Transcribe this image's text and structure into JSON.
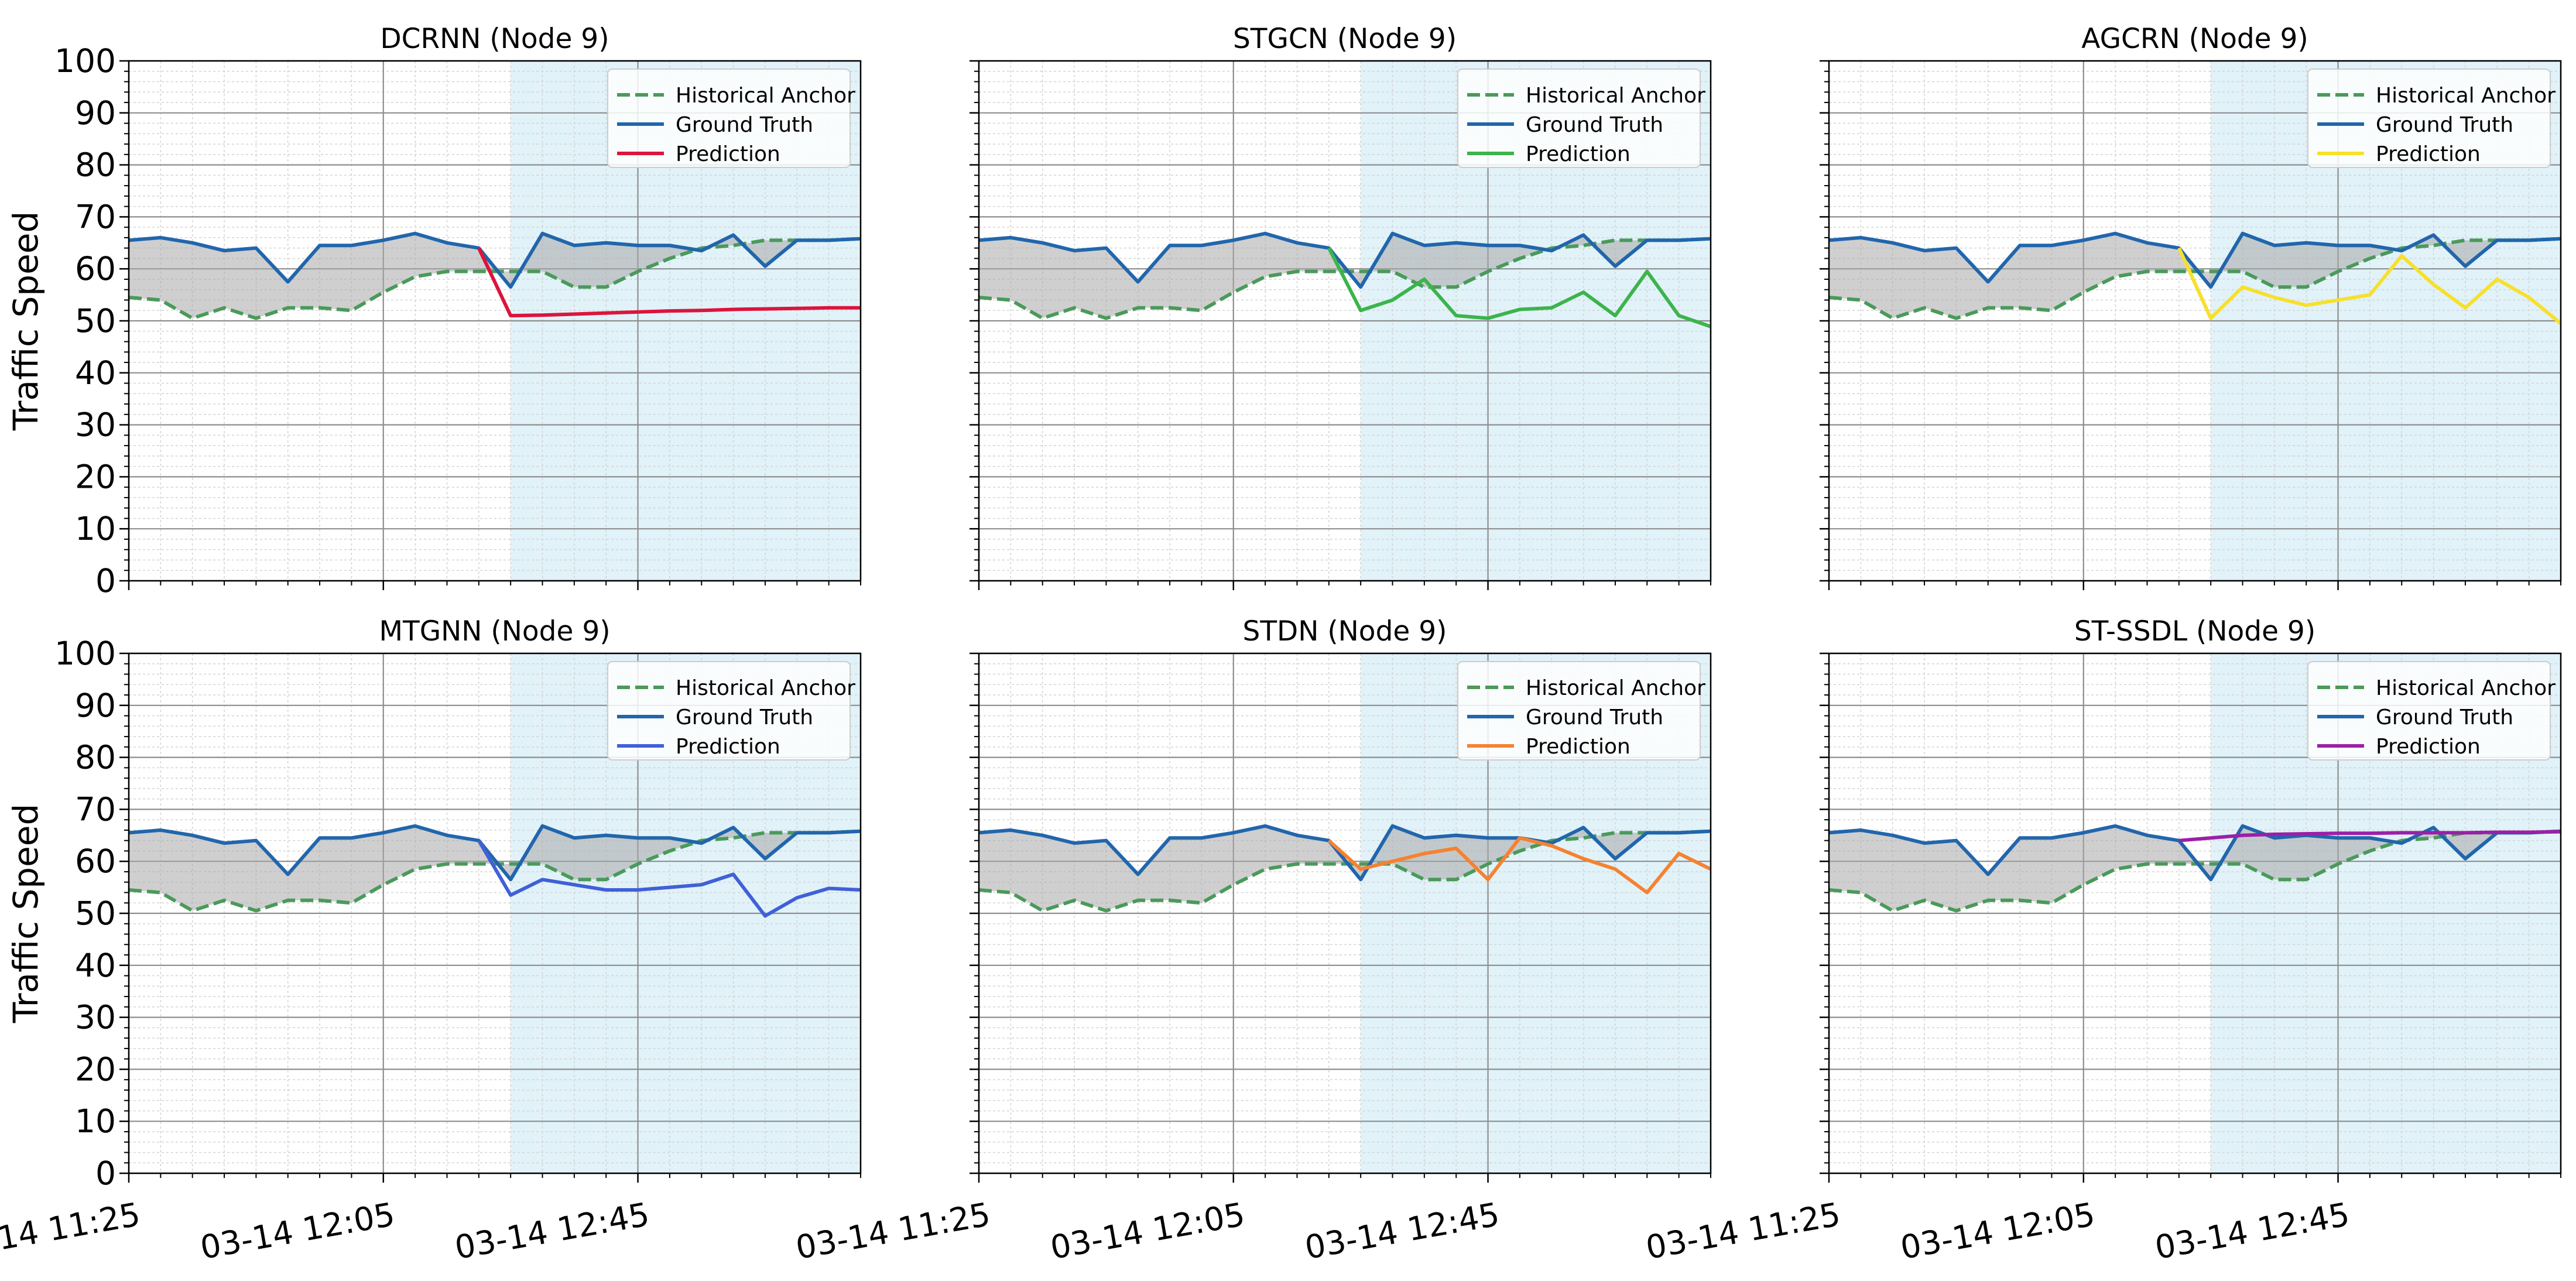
{
  "chart_data": {
    "type": "line",
    "node": "Node 9",
    "ylabel": "Traffic Speed",
    "ylim": [
      0,
      100
    ],
    "yticks": [
      0,
      10,
      20,
      30,
      40,
      50,
      60,
      70,
      80,
      90,
      100
    ],
    "x_count": 24,
    "forecast_start_index": 12,
    "xtick_indices": [
      0,
      8,
      16
    ],
    "xtick_labels": [
      "03-14 11:25",
      "03-14 12:05",
      "03-14 12:45"
    ],
    "legend": [
      "Historical Anchor",
      "Ground Truth",
      "Prediction"
    ],
    "legend_position": "top-right",
    "colors": {
      "anchor": "#4a9a5a",
      "truth": "#2166ac",
      "band": "#a8a8a8",
      "forecast_bg": "#d7eef7"
    },
    "historical_anchor": [
      54.5,
      54,
      50.5,
      52.5,
      50.5,
      52.5,
      52.5,
      52,
      55.5,
      58.5,
      59.5,
      59.5,
      59.5,
      59.5,
      56.5,
      56.5,
      59.5,
      62,
      64,
      64.5,
      65.5,
      65.5,
      65.5,
      65.8
    ],
    "ground_truth": [
      65.5,
      66,
      65,
      63.5,
      64,
      57.5,
      64.5,
      64.5,
      65.5,
      66.8,
      65,
      64,
      56.5,
      66.8,
      64.5,
      65,
      64.5,
      64.5,
      63.5,
      66.5,
      60.5,
      65.5,
      65.5,
      65.8
    ],
    "panels": [
      {
        "title": "DCRNN (Node 9)",
        "color": "#dc143c",
        "prediction": [
          64,
          51,
          51.1,
          51.3,
          51.5,
          51.7,
          51.9,
          52,
          52.2,
          52.3,
          52.4,
          52.5,
          52.5
        ]
      },
      {
        "title": "STGCN (Node 9)",
        "color": "#3cb44b",
        "prediction": [
          64,
          52,
          54,
          58,
          51,
          50.5,
          52.2,
          52.5,
          55.5,
          51,
          59.5,
          51,
          48.9
        ]
      },
      {
        "title": "AGCRN (Node 9)",
        "color": "#f7e02a",
        "prediction": [
          64,
          50.5,
          56.5,
          54.5,
          53,
          54,
          55,
          62.5,
          57,
          52.5,
          58,
          54.5,
          49.5
        ]
      },
      {
        "title": "MTGNN (Node 9)",
        "color": "#4060d8",
        "prediction": [
          64,
          53.5,
          56.5,
          55.5,
          54.5,
          54.5,
          55,
          55.5,
          57.5,
          49.5,
          53,
          54.8,
          54.5
        ]
      },
      {
        "title": "STDN (Node 9)",
        "color": "#f58231",
        "prediction": [
          64,
          58.5,
          60,
          61.5,
          62.5,
          56.5,
          64.5,
          63,
          60.5,
          58.5,
          54,
          61.5,
          58.5
        ]
      },
      {
        "title": "ST-SSDL (Node 9)",
        "color": "#9b1fa8",
        "prediction": [
          64,
          64.5,
          65,
          65.2,
          65.3,
          65.4,
          65.4,
          65.5,
          65.5,
          65.5,
          65.6,
          65.6,
          65.7
        ]
      }
    ]
  }
}
